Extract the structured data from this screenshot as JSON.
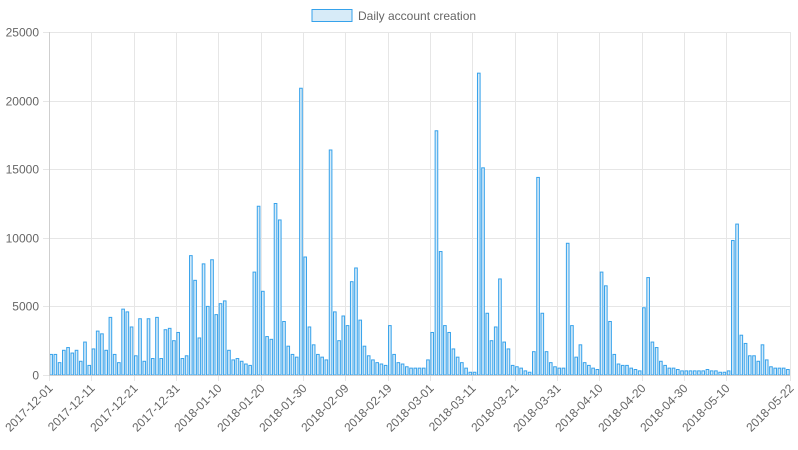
{
  "chart_data": {
    "type": "bar",
    "legend": {
      "label": "Daily account creation",
      "position": "top"
    },
    "colors": {
      "bar_fill": "#d7ebf8",
      "bar_stroke": "#36a2eb",
      "grid": "#e6e6e6",
      "text": "#666666"
    },
    "ylim": [
      0,
      25000
    ],
    "y_ticks": [
      0,
      5000,
      10000,
      15000,
      20000,
      25000
    ],
    "x_start": "2017-12-01",
    "x_end": "2018-05-22",
    "x_ticks": [
      "2017-12-01",
      "2017-12-11",
      "2017-12-21",
      "2017-12-31",
      "2018-01-10",
      "2018-01-20",
      "2018-01-30",
      "2018-02-09",
      "2018-02-19",
      "2018-03-01",
      "2018-03-11",
      "2018-03-21",
      "2018-03-31",
      "2018-04-10",
      "2018-04-20",
      "2018-04-30",
      "2018-05-10",
      "2018-05-22"
    ],
    "grid": true,
    "values": [
      1500,
      1500,
      900,
      1800,
      2000,
      1600,
      1800,
      1000,
      2400,
      700,
      1900,
      3200,
      3000,
      1800,
      4200,
      1500,
      900,
      4800,
      4600,
      3500,
      1400,
      4100,
      1000,
      4100,
      1200,
      4200,
      1200,
      3300,
      3400,
      2500,
      3100,
      1200,
      1400,
      8700,
      6900,
      2700,
      8100,
      5000,
      8400,
      4400,
      5200,
      5400,
      1800,
      1100,
      1200,
      1000,
      800,
      700,
      7500,
      12300,
      6100,
      2800,
      2600,
      12500,
      11300,
      3900,
      2100,
      1500,
      1300,
      20900,
      8600,
      3500,
      2200,
      1500,
      1300,
      1100,
      16400,
      4600,
      2500,
      4300,
      3600,
      6800,
      7800,
      4000,
      2100,
      1400,
      1100,
      900,
      800,
      700,
      3600,
      1500,
      900,
      800,
      600,
      500,
      500,
      500,
      500,
      1100,
      3100,
      17800,
      9000,
      3600,
      3100,
      1900,
      1300,
      900,
      500,
      200,
      200,
      22000,
      15100,
      4500,
      2500,
      3500,
      7000,
      2400,
      1900,
      700,
      600,
      500,
      300,
      200,
      1700,
      14400,
      4500,
      1700,
      900,
      600,
      500,
      500,
      9600,
      3600,
      1300,
      2200,
      900,
      700,
      500,
      400,
      7500,
      6500,
      3900,
      1500,
      800,
      700,
      700,
      500,
      400,
      300,
      4900,
      7100,
      2400,
      2000,
      1000,
      700,
      500,
      500,
      400,
      300,
      300,
      300,
      300,
      300,
      300,
      400,
      300,
      300,
      200,
      200,
      300,
      9800,
      11000,
      2900,
      2300,
      1400,
      1400,
      1000,
      2200,
      1100,
      600,
      500,
      500,
      500,
      400
    ]
  }
}
